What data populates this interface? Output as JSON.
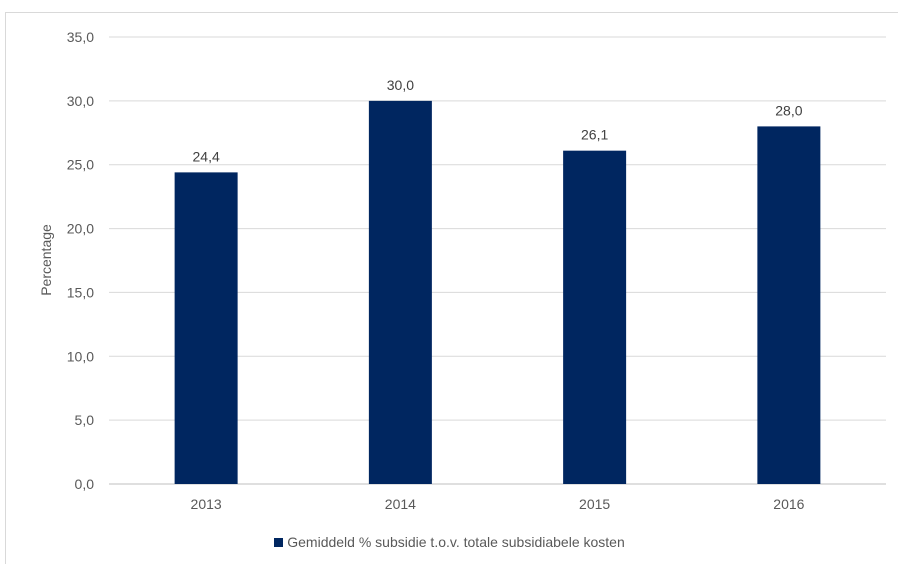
{
  "chart_data": {
    "type": "bar",
    "categories": [
      "2013",
      "2014",
      "2015",
      "2016"
    ],
    "series": [
      {
        "name": "Gemiddeld % subsidie t.o.v. totale subsidiabele kosten",
        "values": [
          24.4,
          30.0,
          26.1,
          28.0
        ],
        "data_labels": [
          "24,4",
          "30,0",
          "26,1",
          "28,0"
        ],
        "color": "#002660"
      }
    ],
    "ylabel": "Percentage",
    "xlabel": "",
    "ylim": [
      0,
      35
    ],
    "yticks": [
      0,
      5,
      10,
      15,
      20,
      25,
      30,
      35
    ],
    "ytick_labels": [
      "0,0",
      "5,0",
      "10,0",
      "15,0",
      "20,0",
      "25,0",
      "30,0",
      "35,0"
    ],
    "grid": true,
    "legend": "bottom"
  }
}
